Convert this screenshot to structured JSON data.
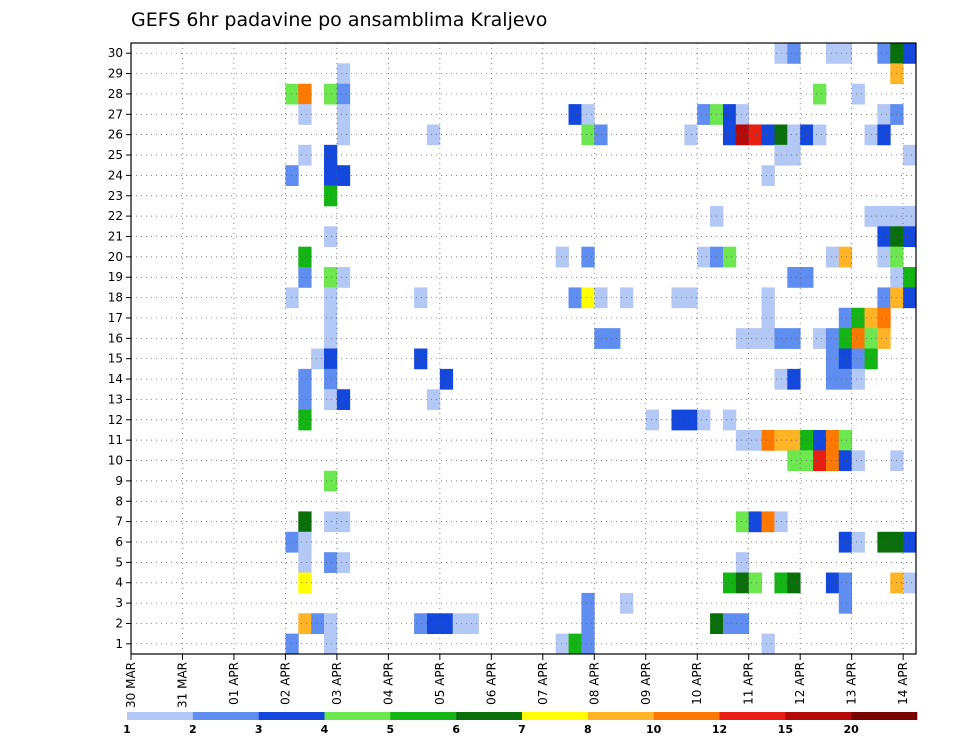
{
  "chart_data": {
    "type": "heatmap",
    "title": "GEFS 6hr padavine po ansamblima Kraljevo",
    "x_tick_labels": [
      "30 MAR",
      "31 MAR",
      "01 APR",
      "02 APR",
      "03 APR",
      "04 APR",
      "05 APR",
      "06 APR",
      "07 APR",
      "08 APR",
      "09 APR",
      "10 APR",
      "11 APR",
      "12 APR",
      "13 APR",
      "14 APR"
    ],
    "x_unit": "6-hour step",
    "steps_per_day": 4,
    "n_steps": 61,
    "y_range": [
      1,
      30
    ],
    "y_ticks": [
      1,
      2,
      3,
      4,
      5,
      6,
      7,
      8,
      9,
      10,
      11,
      12,
      13,
      14,
      15,
      16,
      17,
      18,
      19,
      20,
      21,
      22,
      23,
      24,
      25,
      26,
      27,
      28,
      29,
      30
    ],
    "grid": true,
    "colorbar": {
      "position": "bottom",
      "colors": [
        "#b4c8f5",
        "#5f8ef0",
        "#1448dc",
        "#6ee650",
        "#14b414",
        "#0a6e0a",
        "#ffff00",
        "#ffb428",
        "#ff7800",
        "#e61e14",
        "#b40a0a",
        "#780000"
      ],
      "labels": [
        "1",
        "2",
        "3",
        "4",
        "5",
        "6",
        "7",
        "8",
        "10",
        "12",
        "15",
        "20"
      ]
    },
    "cells": [
      {
        "member": 30,
        "step": 50,
        "level": 1
      },
      {
        "member": 30,
        "step": 51,
        "level": 2
      },
      {
        "member": 30,
        "step": 54,
        "level": 1
      },
      {
        "member": 30,
        "step": 55,
        "level": 1
      },
      {
        "member": 30,
        "step": 58,
        "level": 2
      },
      {
        "member": 30,
        "step": 59,
        "level": 6
      },
      {
        "member": 30,
        "step": 60,
        "level": 3
      },
      {
        "member": 29,
        "step": 16,
        "level": 1
      },
      {
        "member": 29,
        "step": 59,
        "level": 8
      },
      {
        "member": 28,
        "step": 12,
        "level": 4
      },
      {
        "member": 28,
        "step": 13,
        "level": 9
      },
      {
        "member": 28,
        "step": 15,
        "level": 4
      },
      {
        "member": 28,
        "step": 16,
        "level": 2
      },
      {
        "member": 28,
        "step": 53,
        "level": 4
      },
      {
        "member": 28,
        "step": 56,
        "level": 1
      },
      {
        "member": 27,
        "step": 13,
        "level": 1
      },
      {
        "member": 27,
        "step": 16,
        "level": 1
      },
      {
        "member": 27,
        "step": 34,
        "level": 3
      },
      {
        "member": 27,
        "step": 35,
        "level": 1
      },
      {
        "member": 27,
        "step": 44,
        "level": 2
      },
      {
        "member": 27,
        "step": 45,
        "level": 4
      },
      {
        "member": 27,
        "step": 46,
        "level": 3
      },
      {
        "member": 27,
        "step": 47,
        "level": 1
      },
      {
        "member": 27,
        "step": 58,
        "level": 1
      },
      {
        "member": 27,
        "step": 59,
        "level": 2
      },
      {
        "member": 26,
        "step": 16,
        "level": 1
      },
      {
        "member": 26,
        "step": 23,
        "level": 1
      },
      {
        "member": 26,
        "step": 35,
        "level": 4
      },
      {
        "member": 26,
        "step": 36,
        "level": 2
      },
      {
        "member": 26,
        "step": 43,
        "level": 1
      },
      {
        "member": 26,
        "step": 46,
        "level": 3
      },
      {
        "member": 26,
        "step": 47,
        "level": 11
      },
      {
        "member": 26,
        "step": 48,
        "level": 10
      },
      {
        "member": 26,
        "step": 49,
        "level": 3
      },
      {
        "member": 26,
        "step": 50,
        "level": 6
      },
      {
        "member": 26,
        "step": 51,
        "level": 1
      },
      {
        "member": 26,
        "step": 52,
        "level": 3
      },
      {
        "member": 26,
        "step": 53,
        "level": 1
      },
      {
        "member": 26,
        "step": 57,
        "level": 1
      },
      {
        "member": 26,
        "step": 58,
        "level": 3
      },
      {
        "member": 25,
        "step": 13,
        "level": 1
      },
      {
        "member": 25,
        "step": 15,
        "level": 3
      },
      {
        "member": 25,
        "step": 50,
        "level": 1
      },
      {
        "member": 25,
        "step": 51,
        "level": 1
      },
      {
        "member": 25,
        "step": 60,
        "level": 1
      },
      {
        "member": 24,
        "step": 12,
        "level": 2
      },
      {
        "member": 24,
        "step": 15,
        "level": 3
      },
      {
        "member": 24,
        "step": 16,
        "level": 3
      },
      {
        "member": 24,
        "step": 49,
        "level": 1
      },
      {
        "member": 23,
        "step": 15,
        "level": 5
      },
      {
        "member": 22,
        "step": 45,
        "level": 1
      },
      {
        "member": 22,
        "step": 57,
        "level": 1
      },
      {
        "member": 22,
        "step": 58,
        "level": 1
      },
      {
        "member": 22,
        "step": 59,
        "level": 1
      },
      {
        "member": 22,
        "step": 60,
        "level": 1
      },
      {
        "member": 21,
        "step": 15,
        "level": 1
      },
      {
        "member": 21,
        "step": 58,
        "level": 3
      },
      {
        "member": 21,
        "step": 59,
        "level": 6
      },
      {
        "member": 21,
        "step": 60,
        "level": 3
      },
      {
        "member": 20,
        "step": 13,
        "level": 5
      },
      {
        "member": 20,
        "step": 33,
        "level": 1
      },
      {
        "member": 20,
        "step": 35,
        "level": 2
      },
      {
        "member": 20,
        "step": 44,
        "level": 1
      },
      {
        "member": 20,
        "step": 45,
        "level": 2
      },
      {
        "member": 20,
        "step": 46,
        "level": 4
      },
      {
        "member": 20,
        "step": 54,
        "level": 1
      },
      {
        "member": 20,
        "step": 55,
        "level": 8
      },
      {
        "member": 20,
        "step": 58,
        "level": 1
      },
      {
        "member": 20,
        "step": 59,
        "level": 4
      },
      {
        "member": 19,
        "step": 13,
        "level": 2
      },
      {
        "member": 19,
        "step": 15,
        "level": 4
      },
      {
        "member": 19,
        "step": 16,
        "level": 1
      },
      {
        "member": 19,
        "step": 51,
        "level": 2
      },
      {
        "member": 19,
        "step": 52,
        "level": 2
      },
      {
        "member": 19,
        "step": 59,
        "level": 1
      },
      {
        "member": 19,
        "step": 60,
        "level": 5
      },
      {
        "member": 18,
        "step": 12,
        "level": 1
      },
      {
        "member": 18,
        "step": 15,
        "level": 1
      },
      {
        "member": 18,
        "step": 22,
        "level": 1
      },
      {
        "member": 18,
        "step": 34,
        "level": 2
      },
      {
        "member": 18,
        "step": 35,
        "level": 7
      },
      {
        "member": 18,
        "step": 36,
        "level": 1
      },
      {
        "member": 18,
        "step": 38,
        "level": 1
      },
      {
        "member": 18,
        "step": 42,
        "level": 1
      },
      {
        "member": 18,
        "step": 43,
        "level": 1
      },
      {
        "member": 18,
        "step": 49,
        "level": 1
      },
      {
        "member": 18,
        "step": 58,
        "level": 2
      },
      {
        "member": 18,
        "step": 59,
        "level": 8
      },
      {
        "member": 18,
        "step": 60,
        "level": 3
      },
      {
        "member": 17,
        "step": 15,
        "level": 1
      },
      {
        "member": 17,
        "step": 49,
        "level": 1
      },
      {
        "member": 17,
        "step": 55,
        "level": 2
      },
      {
        "member": 17,
        "step": 56,
        "level": 5
      },
      {
        "member": 17,
        "step": 57,
        "level": 8
      },
      {
        "member": 17,
        "step": 58,
        "level": 9
      },
      {
        "member": 16,
        "step": 15,
        "level": 1
      },
      {
        "member": 16,
        "step": 36,
        "level": 2
      },
      {
        "member": 16,
        "step": 37,
        "level": 2
      },
      {
        "member": 16,
        "step": 47,
        "level": 1
      },
      {
        "member": 16,
        "step": 48,
        "level": 1
      },
      {
        "member": 16,
        "step": 49,
        "level": 1
      },
      {
        "member": 16,
        "step": 50,
        "level": 2
      },
      {
        "member": 16,
        "step": 51,
        "level": 2
      },
      {
        "member": 16,
        "step": 53,
        "level": 1
      },
      {
        "member": 16,
        "step": 54,
        "level": 2
      },
      {
        "member": 16,
        "step": 55,
        "level": 5
      },
      {
        "member": 16,
        "step": 56,
        "level": 9
      },
      {
        "member": 16,
        "step": 57,
        "level": 4
      },
      {
        "member": 16,
        "step": 58,
        "level": 8
      },
      {
        "member": 15,
        "step": 14,
        "level": 1
      },
      {
        "member": 15,
        "step": 15,
        "level": 3
      },
      {
        "member": 15,
        "step": 22,
        "level": 3
      },
      {
        "member": 15,
        "step": 54,
        "level": 2
      },
      {
        "member": 15,
        "step": 55,
        "level": 3
      },
      {
        "member": 15,
        "step": 56,
        "level": 2
      },
      {
        "member": 15,
        "step": 57,
        "level": 5
      },
      {
        "member": 14,
        "step": 13,
        "level": 2
      },
      {
        "member": 14,
        "step": 15,
        "level": 2
      },
      {
        "member": 14,
        "step": 24,
        "level": 3
      },
      {
        "member": 14,
        "step": 50,
        "level": 1
      },
      {
        "member": 14,
        "step": 51,
        "level": 3
      },
      {
        "member": 14,
        "step": 54,
        "level": 2
      },
      {
        "member": 14,
        "step": 55,
        "level": 2
      },
      {
        "member": 14,
        "step": 56,
        "level": 1
      },
      {
        "member": 13,
        "step": 13,
        "level": 2
      },
      {
        "member": 13,
        "step": 15,
        "level": 1
      },
      {
        "member": 13,
        "step": 16,
        "level": 3
      },
      {
        "member": 13,
        "step": 23,
        "level": 1
      },
      {
        "member": 12,
        "step": 13,
        "level": 5
      },
      {
        "member": 12,
        "step": 40,
        "level": 1
      },
      {
        "member": 12,
        "step": 42,
        "level": 3
      },
      {
        "member": 12,
        "step": 43,
        "level": 3
      },
      {
        "member": 12,
        "step": 44,
        "level": 1
      },
      {
        "member": 12,
        "step": 46,
        "level": 1
      },
      {
        "member": 11,
        "step": 47,
        "level": 1
      },
      {
        "member": 11,
        "step": 48,
        "level": 1
      },
      {
        "member": 11,
        "step": 49,
        "level": 9
      },
      {
        "member": 11,
        "step": 50,
        "level": 8
      },
      {
        "member": 11,
        "step": 51,
        "level": 8
      },
      {
        "member": 11,
        "step": 52,
        "level": 5
      },
      {
        "member": 11,
        "step": 53,
        "level": 3
      },
      {
        "member": 11,
        "step": 54,
        "level": 9
      },
      {
        "member": 11,
        "step": 55,
        "level": 4
      },
      {
        "member": 10,
        "step": 51,
        "level": 4
      },
      {
        "member": 10,
        "step": 52,
        "level": 4
      },
      {
        "member": 10,
        "step": 53,
        "level": 10
      },
      {
        "member": 10,
        "step": 54,
        "level": 9
      },
      {
        "member": 10,
        "step": 55,
        "level": 3
      },
      {
        "member": 10,
        "step": 56,
        "level": 1
      },
      {
        "member": 10,
        "step": 59,
        "level": 1
      },
      {
        "member": 9,
        "step": 15,
        "level": 4
      },
      {
        "member": 7,
        "step": 13,
        "level": 6
      },
      {
        "member": 7,
        "step": 15,
        "level": 1
      },
      {
        "member": 7,
        "step": 16,
        "level": 1
      },
      {
        "member": 7,
        "step": 47,
        "level": 4
      },
      {
        "member": 7,
        "step": 48,
        "level": 3
      },
      {
        "member": 7,
        "step": 49,
        "level": 9
      },
      {
        "member": 7,
        "step": 50,
        "level": 1
      },
      {
        "member": 6,
        "step": 12,
        "level": 2
      },
      {
        "member": 6,
        "step": 13,
        "level": 1
      },
      {
        "member": 6,
        "step": 55,
        "level": 3
      },
      {
        "member": 6,
        "step": 56,
        "level": 1
      },
      {
        "member": 6,
        "step": 58,
        "level": 6
      },
      {
        "member": 6,
        "step": 59,
        "level": 6
      },
      {
        "member": 6,
        "step": 60,
        "level": 3
      },
      {
        "member": 5,
        "step": 13,
        "level": 1
      },
      {
        "member": 5,
        "step": 15,
        "level": 2
      },
      {
        "member": 5,
        "step": 16,
        "level": 1
      },
      {
        "member": 5,
        "step": 47,
        "level": 1
      },
      {
        "member": 4,
        "step": 13,
        "level": 7
      },
      {
        "member": 4,
        "step": 46,
        "level": 5
      },
      {
        "member": 4,
        "step": 47,
        "level": 6
      },
      {
        "member": 4,
        "step": 48,
        "level": 4
      },
      {
        "member": 4,
        "step": 50,
        "level": 5
      },
      {
        "member": 4,
        "step": 51,
        "level": 6
      },
      {
        "member": 4,
        "step": 54,
        "level": 3
      },
      {
        "member": 4,
        "step": 55,
        "level": 2
      },
      {
        "member": 4,
        "step": 59,
        "level": 8
      },
      {
        "member": 4,
        "step": 60,
        "level": 1
      },
      {
        "member": 3,
        "step": 35,
        "level": 2
      },
      {
        "member": 3,
        "step": 38,
        "level": 1
      },
      {
        "member": 3,
        "step": 55,
        "level": 2
      },
      {
        "member": 2,
        "step": 13,
        "level": 8
      },
      {
        "member": 2,
        "step": 14,
        "level": 2
      },
      {
        "member": 2,
        "step": 15,
        "level": 1
      },
      {
        "member": 2,
        "step": 22,
        "level": 2
      },
      {
        "member": 2,
        "step": 23,
        "level": 3
      },
      {
        "member": 2,
        "step": 24,
        "level": 3
      },
      {
        "member": 2,
        "step": 25,
        "level": 1
      },
      {
        "member": 2,
        "step": 26,
        "level": 1
      },
      {
        "member": 2,
        "step": 35,
        "level": 2
      },
      {
        "member": 2,
        "step": 45,
        "level": 6
      },
      {
        "member": 2,
        "step": 46,
        "level": 2
      },
      {
        "member": 2,
        "step": 47,
        "level": 2
      },
      {
        "member": 1,
        "step": 12,
        "level": 2
      },
      {
        "member": 1,
        "step": 15,
        "level": 1
      },
      {
        "member": 1,
        "step": 33,
        "level": 1
      },
      {
        "member": 1,
        "step": 34,
        "level": 5
      },
      {
        "member": 1,
        "step": 35,
        "level": 2
      },
      {
        "member": 1,
        "step": 49,
        "level": 1
      }
    ]
  }
}
